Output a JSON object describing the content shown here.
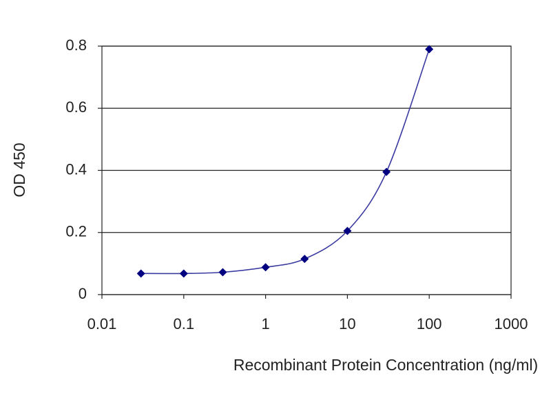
{
  "chart_data": {
    "type": "line",
    "xlabel": "Recombinant Protein Concentration (ng/ml)",
    "ylabel": "OD 450",
    "x": [
      0.03,
      0.1,
      0.3,
      1,
      3,
      10,
      30,
      100
    ],
    "series": [
      {
        "color": "#000080",
        "line_color": "#3a3aa0",
        "values": [
          0.068,
          0.068,
          0.072,
          0.088,
          0.115,
          0.205,
          0.395,
          0.79
        ]
      }
    ],
    "xlim": [
      0.01,
      1000
    ],
    "xticks": [
      0.01,
      0.1,
      1,
      10,
      100,
      1000
    ],
    "xscale": "log",
    "ylim": [
      0,
      0.8
    ],
    "yticks": [
      0,
      0.2,
      0.4,
      0.6,
      0.8
    ],
    "grid": true
  }
}
